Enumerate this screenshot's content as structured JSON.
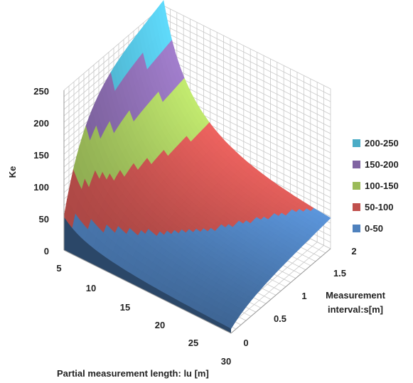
{
  "chart_data": {
    "type": "surface",
    "title": "",
    "zlabel": "Ke",
    "xlabel": "Partial measurement length: lu [m]",
    "ylabel_line1": "Measurement",
    "ylabel_line2": "interval:s[m]",
    "x_ticks": [
      "5",
      "10",
      "15",
      "20",
      "25",
      "30"
    ],
    "y_ticks": [
      "0",
      "0.5",
      "1",
      "1.5",
      "2"
    ],
    "z_ticks": [
      "0",
      "50",
      "100",
      "150",
      "200",
      "250"
    ],
    "x_range": [
      5,
      30
    ],
    "y_range": [
      0,
      2
    ],
    "zlim": [
      0,
      250
    ],
    "grid": true,
    "legend_position": "right",
    "bands": [
      {
        "label": "200-250",
        "min": 200,
        "max": 250,
        "color": "#4bacc6"
      },
      {
        "label": "150-200",
        "min": 150,
        "max": 200,
        "color": "#8064a2"
      },
      {
        "label": "100-150",
        "min": 100,
        "max": 150,
        "color": "#9bbb59"
      },
      {
        "label": "50-100",
        "min": 50,
        "max": 100,
        "color": "#c0504d"
      },
      {
        "label": "0-50",
        "min": 0,
        "max": 50,
        "color": "#4f81bd"
      }
    ],
    "surface_samples": [
      {
        "lu": 5,
        "s": 0,
        "Ke": 52
      },
      {
        "lu": 5,
        "s": 2,
        "Ke": 250
      },
      {
        "lu": 30,
        "s": 0,
        "Ke": 2
      },
      {
        "lu": 30,
        "s": 2,
        "Ke": 60
      },
      {
        "lu": 15,
        "s": 1,
        "Ke": 90
      }
    ]
  }
}
